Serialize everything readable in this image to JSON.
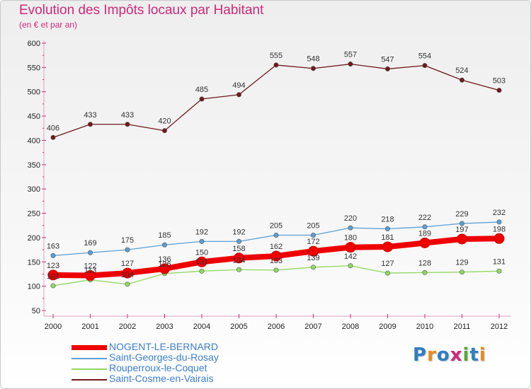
{
  "chart_data": {
    "type": "line",
    "title": "Evolution des Impôts locaux par Habitant",
    "subtitle": "(en € et par an)",
    "xlabel": "",
    "ylabel": "",
    "ylim": [
      50,
      600
    ],
    "yticks": [
      50,
      100,
      150,
      200,
      250,
      300,
      350,
      400,
      450,
      500,
      550,
      600
    ],
    "x": [
      2000,
      2001,
      2002,
      2003,
      2004,
      2005,
      2006,
      2007,
      2008,
      2009,
      2010,
      2011,
      2012
    ],
    "grid": false,
    "legend": "bottom-left",
    "series": [
      {
        "name": "Saint-Cosme-en-Vairais",
        "color": "#6e1a1a",
        "values": [
          406,
          433,
          433,
          420,
          485,
          494,
          555,
          548,
          557,
          547,
          554,
          524,
          503
        ]
      },
      {
        "name": "Saint-Georges-du-Rosay",
        "color": "#5a9fd4",
        "values": [
          163,
          169,
          175,
          185,
          192,
          192,
          205,
          205,
          220,
          218,
          222,
          229,
          232
        ]
      },
      {
        "name": "Rouperroux-le-Coquet",
        "color": "#90d860",
        "values": [
          101,
          113,
          104,
          126,
          131,
          134,
          133,
          139,
          142,
          127,
          128,
          129,
          131
        ]
      },
      {
        "name": "NOGENT-LE-BERNARD",
        "color": "#ee0000",
        "values": [
          123,
          122,
          127,
          136,
          150,
          158,
          162,
          172,
          180,
          181,
          189,
          197,
          198
        ]
      }
    ]
  },
  "legend": [
    {
      "name": "NOGENT-LE-BERNARD",
      "color": "#ee0000",
      "text_color": "#3b7ed0"
    },
    {
      "name": "Saint-Georges-du-Rosay",
      "color": "#5a9fd4",
      "text_color": "#3b7ed0"
    },
    {
      "name": "Rouperroux-le-Coquet",
      "color": "#90d860",
      "text_color": "#3b7ed0"
    },
    {
      "name": "Saint-Cosme-en-Vairais",
      "color": "#6e1a1a",
      "text_color": "#3b7ed0"
    }
  ],
  "brand": {
    "logo_text": "Proxiti",
    "letter_colors": [
      "#2f7fc0",
      "#e88c1a",
      "#2f7fc0",
      "#d0287a",
      "#5aa832",
      "#2f7fc0",
      "#e88c1a"
    ]
  }
}
